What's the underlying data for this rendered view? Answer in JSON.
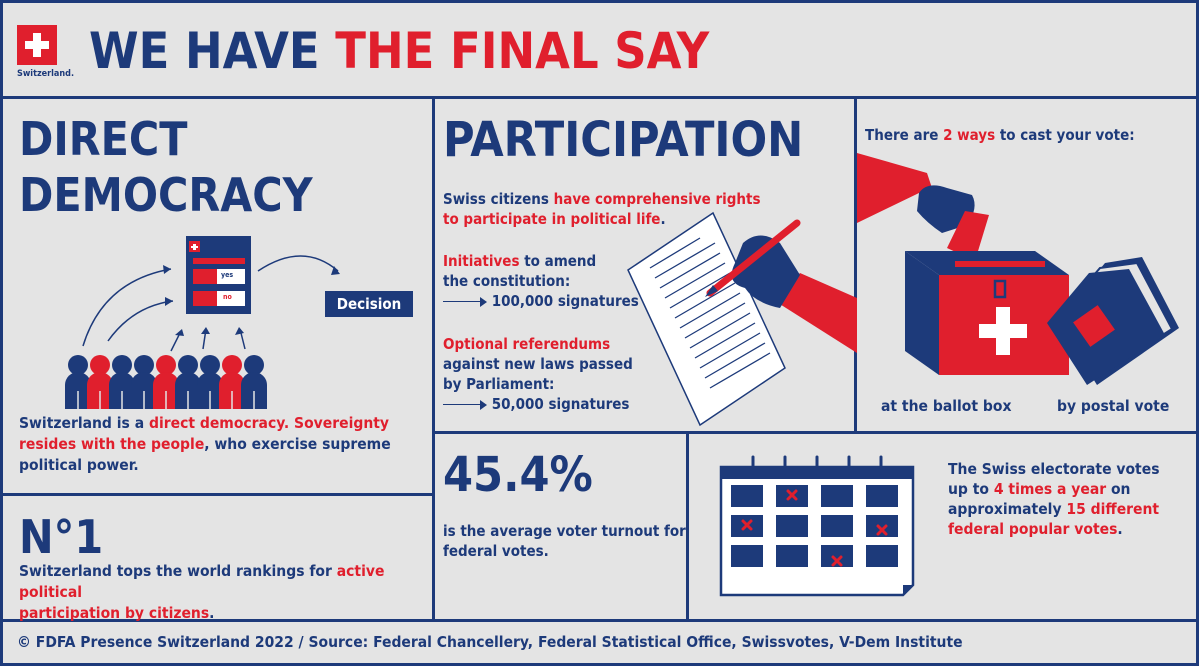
{
  "header": {
    "logo_label": "Switzerland.",
    "title_part1": "WE HAVE ",
    "title_part2": "THE FINAL SAY"
  },
  "direct_democracy": {
    "heading_line1": "DIRECT",
    "heading_line2": "DEMOCRACY",
    "ballot_yes": "yes",
    "ballot_no": "no",
    "decision_label": "Decision",
    "text_a": "Switzerland is a ",
    "text_b": "direct democracy.",
    "text_c": " Sovereignty",
    "text_d": "resides with the people",
    "text_e": ", who exercise supreme",
    "text_f": "political power."
  },
  "ranking": {
    "heading": "N°1",
    "text_a": "Switzerland tops the world rankings for ",
    "text_b": "active political",
    "text_c": "participation by citizens",
    "text_d": "."
  },
  "participation": {
    "heading": "PARTICIPATION",
    "intro_a": "Swiss citizens ",
    "intro_b": "have comprehensive rights",
    "intro_c": "to participate in political life",
    "intro_d": ".",
    "initiatives_a": "Initiatives",
    "initiatives_b": " to amend",
    "initiatives_c": "the constitution:",
    "initiatives_value": "100,000 signatures",
    "referendum_a": "Optional referendums",
    "referendum_b": "against new laws passed",
    "referendum_c": "by Parliament:",
    "referendum_value": "50,000 signatures"
  },
  "voting": {
    "intro_a": "There are ",
    "intro_b": "2 ways",
    "intro_c": " to cast your vote:",
    "ballot_box": "at the ballot box",
    "postal": "by postal vote"
  },
  "turnout": {
    "value": "45.4%",
    "text_a": "is the average voter turnout for",
    "text_b": "federal votes."
  },
  "frequency": {
    "text_a": "The Swiss electorate votes",
    "text_b": "up to ",
    "text_c": "4 times a year",
    "text_d": " on",
    "text_e": "approximately ",
    "text_f": "15 different",
    "text_g": "federal popular votes",
    "text_h": "."
  },
  "footer": {
    "source": "© FDFA Presence Switzerland 2022 / Source: Federal Chancellery, Federal Statistical Office, Swissvotes, V-Dem Institute"
  },
  "colors": {
    "navy": "#1d3a7a",
    "red": "#e01f2d",
    "background": "#e4e4e4"
  }
}
